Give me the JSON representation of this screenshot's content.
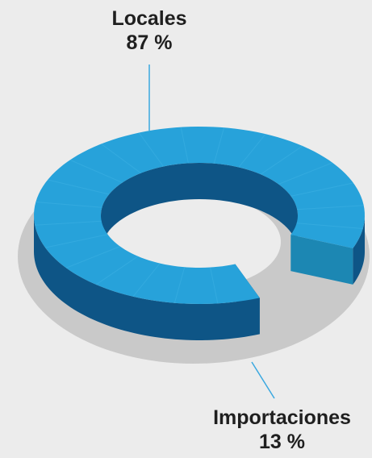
{
  "chart_data": {
    "type": "pie",
    "categories": [
      "Locales",
      "Importaciones"
    ],
    "values": [
      87,
      13
    ],
    "labels": [
      {
        "name": "Locales",
        "value_text": "87 %"
      },
      {
        "name": "Importaciones",
        "value_text": "13 %"
      }
    ],
    "colors": {
      "locales_top": "#27a2da",
      "locales_side": "#0e5586",
      "cut_face": "#1c87b3",
      "shadow": "#c9c9c9",
      "background": "#ececec",
      "leader_line": "#3aa8e0"
    }
  }
}
